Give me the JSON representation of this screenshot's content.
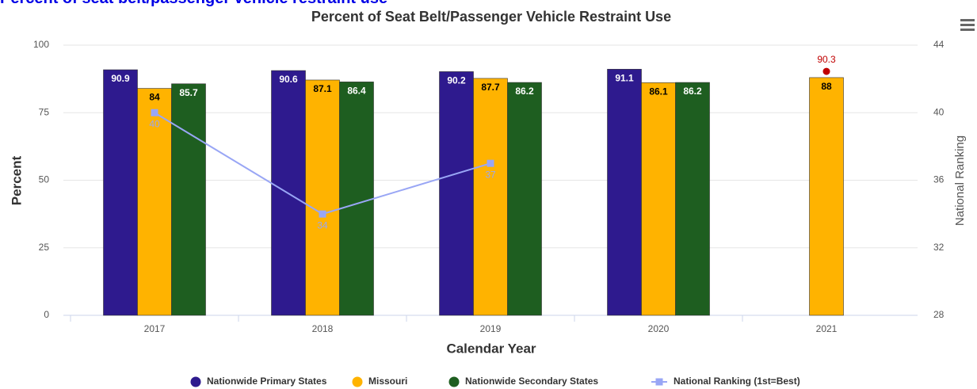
{
  "page_heading": "Percent of seat belt/passenger vehicle restraint use",
  "chart_data": {
    "type": "bar",
    "title": "Percent of Seat Belt/Passenger Vehicle Restraint Use",
    "x_label": "Calendar Year",
    "y_label": "Percent",
    "y2_label": "National Ranking",
    "categories": [
      "2017",
      "2018",
      "2019",
      "2020",
      "2021"
    ],
    "series": [
      {
        "name": "Nationwide Primary States",
        "color": "#2e1a8e",
        "values": [
          90.9,
          90.6,
          90.2,
          91.1,
          null
        ]
      },
      {
        "name": "Missouri",
        "color": "#ffb300",
        "values": [
          84,
          87.1,
          87.7,
          86.1,
          88
        ]
      },
      {
        "name": "Nationwide Secondary States",
        "color": "#1e5e20",
        "values": [
          85.7,
          86.4,
          86.2,
          86.2,
          null
        ]
      },
      {
        "name": "National Ranking (1st=Best)",
        "color": "#99a6f5",
        "type": "line",
        "axis": "y2",
        "values": [
          40,
          34,
          37,
          null,
          null
        ]
      }
    ],
    "annotations": [
      {
        "category": "2021",
        "value": 90.3,
        "color": "#c00000"
      }
    ],
    "ylim": [
      0,
      100
    ],
    "yticks": [
      0,
      25,
      50,
      75,
      100
    ],
    "y2lim": [
      28,
      44
    ],
    "y2ticks": [
      28,
      32,
      36,
      40,
      44
    ],
    "grid": true,
    "legend": "bottom"
  }
}
